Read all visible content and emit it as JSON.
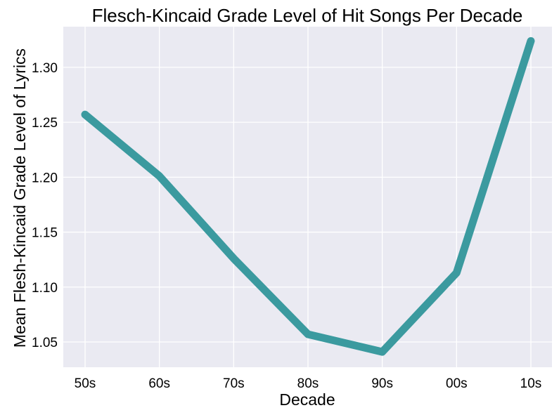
{
  "chart_data": {
    "type": "line",
    "title": "Flesch-Kincaid Grade Level of Hit Songs Per Decade",
    "xlabel": "Decade",
    "ylabel": "Mean Flesh-Kincaid Grade Level of Lyrics",
    "categories": [
      "50s",
      "60s",
      "70s",
      "80s",
      "90s",
      "00s",
      "10s"
    ],
    "series": [
      {
        "values": [
          1.257,
          1.201,
          1.126,
          1.057,
          1.041,
          1.113,
          1.324
        ]
      }
    ],
    "yticks": [
      "1.05",
      "1.10",
      "1.15",
      "1.20",
      "1.25",
      "1.30"
    ],
    "ylim": [
      1.027,
      1.337
    ],
    "grid": true,
    "colors": {
      "line": "#3b9a9f",
      "plot_background": "#eaeaf2",
      "grid": "#ffffff"
    }
  }
}
